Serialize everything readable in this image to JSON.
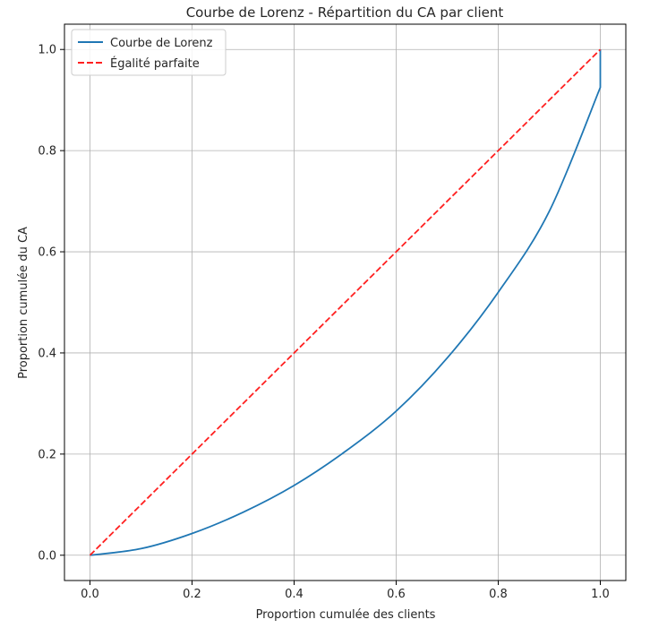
{
  "chart_data": {
    "type": "line",
    "title": "Courbe de Lorenz - Répartition du CA par client",
    "xlabel": "Proportion cumulée des clients",
    "ylabel": "Proportion cumulée du CA",
    "xlim": [
      -0.05,
      1.05
    ],
    "ylim": [
      -0.05,
      1.05
    ],
    "xticks": [
      "0.0",
      "0.2",
      "0.4",
      "0.6",
      "0.8",
      "1.0"
    ],
    "yticks": [
      "0.0",
      "0.2",
      "0.4",
      "0.6",
      "0.8",
      "1.0"
    ],
    "grid": true,
    "legend_position": "upper-left",
    "series": [
      {
        "name": "Courbe de Lorenz",
        "color": "#1f77b4",
        "style": "solid",
        "x": [
          0.0,
          0.1,
          0.2,
          0.3,
          0.4,
          0.5,
          0.6,
          0.7,
          0.8,
          0.9,
          1.0,
          1.0
        ],
        "y": [
          0.0,
          0.013,
          0.043,
          0.085,
          0.138,
          0.205,
          0.285,
          0.39,
          0.52,
          0.68,
          0.925,
          1.0
        ]
      },
      {
        "name": "Égalité parfaite",
        "color": "#ff2020",
        "style": "dashed",
        "x": [
          0.0,
          1.0
        ],
        "y": [
          0.0,
          1.0
        ]
      }
    ]
  }
}
